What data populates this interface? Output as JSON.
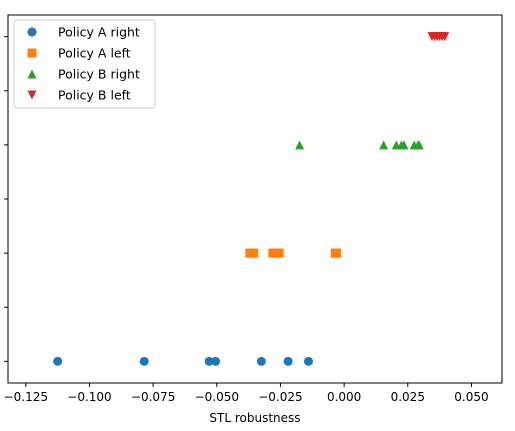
{
  "chart_data": {
    "type": "scatter",
    "title": "",
    "xlabel": "STL robustness",
    "ylabel": "",
    "xlim": [
      -0.132,
      0.062
    ],
    "ylim": [
      -0.2,
      3.2
    ],
    "x_ticks": [
      -0.125,
      -0.1,
      -0.075,
      -0.05,
      -0.025,
      0.0,
      0.025,
      0.05
    ],
    "x_tick_labels": [
      "−0.125",
      "−0.100",
      "−0.075",
      "−0.050",
      "−0.025",
      "0.000",
      "0.025",
      "0.050"
    ],
    "y_ticks": [
      0,
      0.5,
      1,
      1.5,
      2,
      2.5,
      3
    ],
    "y_tick_labels": [],
    "grid": false,
    "legend_position": "upper-left",
    "series": [
      {
        "name": "Policy A right",
        "marker": "circle",
        "color": "#1f77b4",
        "y": 0,
        "x": [
          -0.1125,
          -0.0785,
          -0.053,
          -0.0505,
          -0.0325,
          -0.022,
          -0.014
        ]
      },
      {
        "name": "Policy A left",
        "marker": "square",
        "color": "#ff7f0e",
        "y": 1,
        "x": [
          -0.037,
          -0.0365,
          -0.0355,
          -0.028,
          -0.0265,
          -0.0255,
          -0.0035,
          -0.003
        ]
      },
      {
        "name": "Policy B right",
        "marker": "triangle-up",
        "color": "#2ca02c",
        "y": 2,
        "x": [
          -0.0175,
          0.0155,
          0.0205,
          0.0225,
          0.0235,
          0.0275,
          0.029,
          0.0295
        ]
      },
      {
        "name": "Policy B left",
        "marker": "triangle-down",
        "color": "#d62728",
        "y": 3,
        "x": [
          0.0345,
          0.0355,
          0.0365,
          0.0375,
          0.0385,
          0.0395
        ]
      }
    ]
  }
}
